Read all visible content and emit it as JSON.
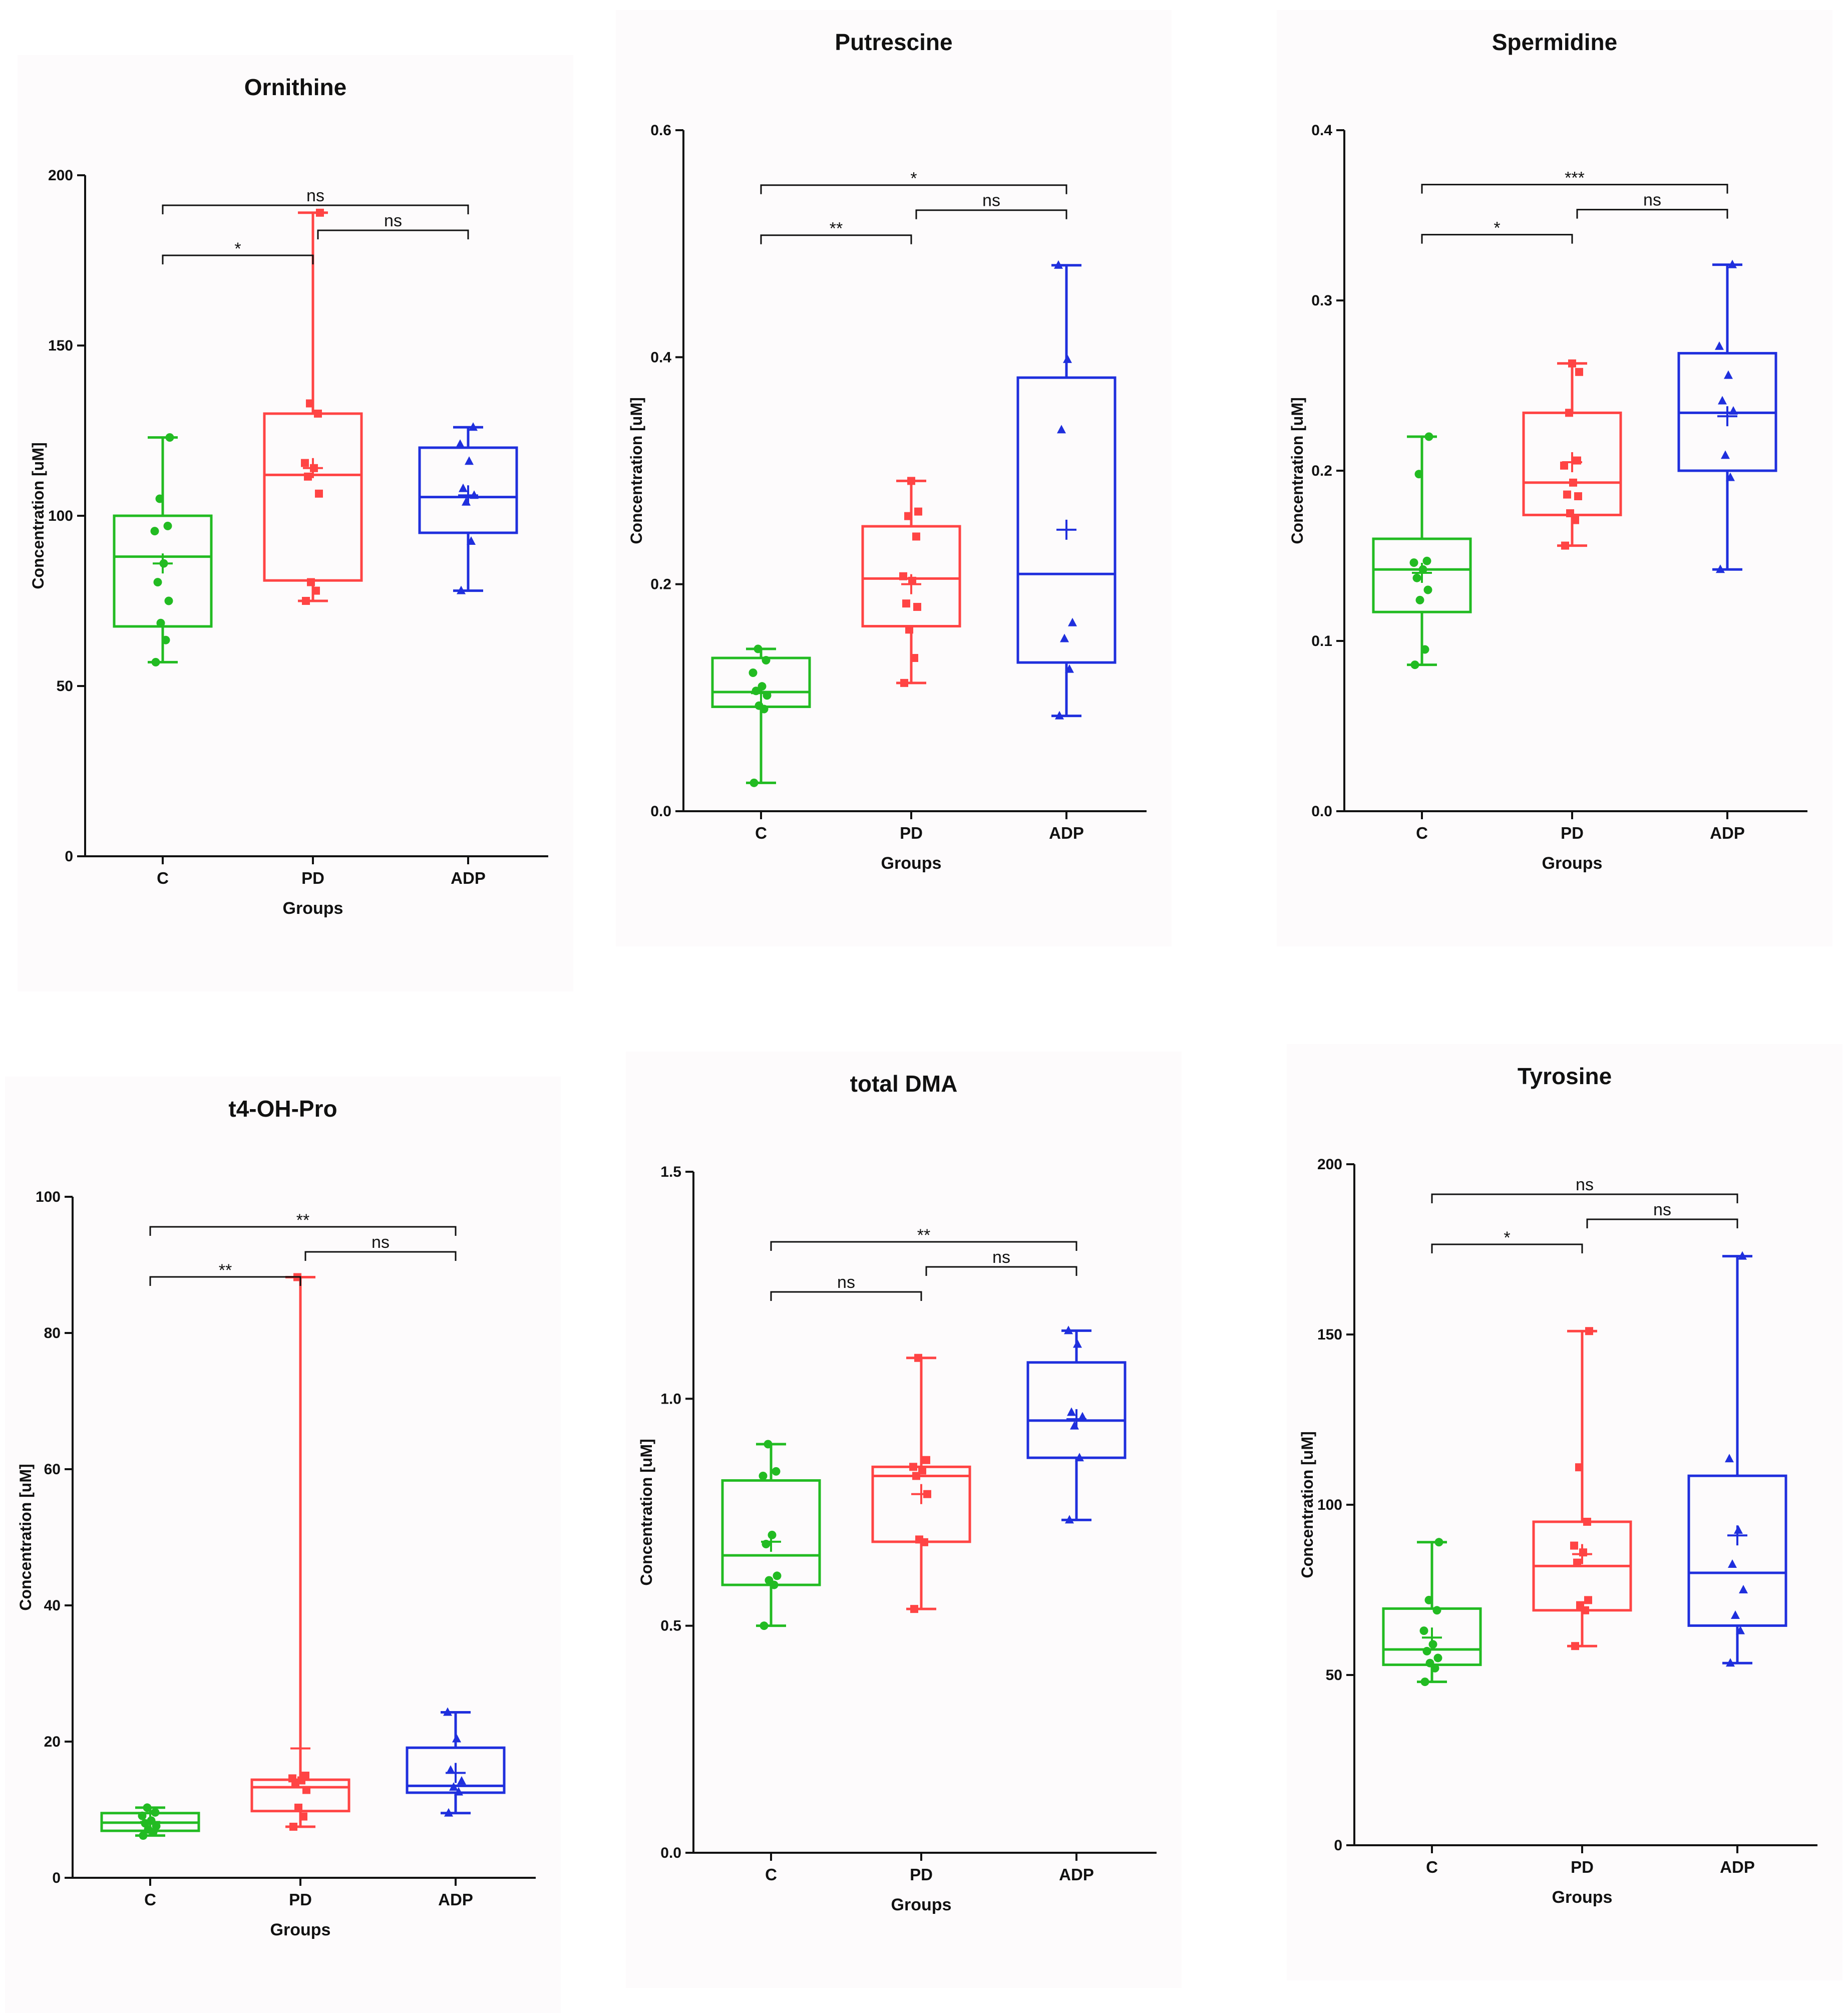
{
  "colors": {
    "C": "#22bb22",
    "PD": "#ff4444",
    "ADP": "#1f2fdd",
    "axis": "#111111"
  },
  "chart_data": [
    {
      "type": "box",
      "title": "Ornithine",
      "xlabel": "Groups",
      "ylabel": "Concentration [uM]",
      "ylim": [
        0,
        200
      ],
      "yticks": [
        0,
        50,
        100,
        150,
        200
      ],
      "ytick_labels": [
        "0",
        "50",
        "100",
        "150",
        "200"
      ],
      "categories": [
        "C",
        "PD",
        "ADP"
      ],
      "groups": [
        {
          "name": "C",
          "min": 57,
          "q1": 67.5,
          "median": 88,
          "q3": 100,
          "max": 123,
          "mean": 86,
          "marker": "circle",
          "points": [
            57,
            63.5,
            68.5,
            75,
            80.5,
            86,
            95.5,
            97,
            105,
            123
          ]
        },
        {
          "name": "PD",
          "min": 75,
          "q1": 81,
          "median": 112,
          "q3": 130,
          "max": 189,
          "mean": 114,
          "marker": "square",
          "points": [
            75,
            78,
            80.5,
            106.5,
            111.5,
            114,
            115.5,
            130,
            133,
            189
          ]
        },
        {
          "name": "ADP",
          "min": 78,
          "q1": 95,
          "median": 105.5,
          "q3": 120,
          "max": 126,
          "mean": 106,
          "marker": "triangle",
          "points": [
            78,
            92.5,
            104,
            106,
            108,
            116,
            121,
            126
          ]
        }
      ],
      "comparisons": [
        {
          "from": "C",
          "to": "PD",
          "label": "*"
        },
        {
          "from": "PD",
          "to": "ADP",
          "label": "ns"
        },
        {
          "from": "C",
          "to": "ADP",
          "label": "ns"
        }
      ]
    },
    {
      "type": "box",
      "title": "Putrescine",
      "xlabel": "Groups",
      "ylabel": "Concentration [uM]",
      "ylim": [
        0,
        0.6
      ],
      "yticks": [
        0,
        0.2,
        0.4,
        0.6
      ],
      "ytick_labels": [
        "0.0",
        "0.2",
        "0.4",
        "0.6"
      ],
      "categories": [
        "C",
        "PD",
        "ADP"
      ],
      "groups": [
        {
          "name": "C",
          "min": 0.025,
          "q1": 0.092,
          "median": 0.105,
          "q3": 0.135,
          "max": 0.143,
          "mean": 0.104,
          "marker": "circle",
          "points": [
            0.025,
            0.09,
            0.093,
            0.102,
            0.106,
            0.11,
            0.122,
            0.133,
            0.143
          ]
        },
        {
          "name": "PD",
          "min": 0.113,
          "q1": 0.163,
          "median": 0.205,
          "q3": 0.251,
          "max": 0.291,
          "mean": 0.2,
          "marker": "square",
          "points": [
            0.113,
            0.135,
            0.16,
            0.18,
            0.183,
            0.203,
            0.207,
            0.242,
            0.26,
            0.264,
            0.291
          ]
        },
        {
          "name": "ADP",
          "min": 0.084,
          "q1": 0.131,
          "median": 0.209,
          "q3": 0.382,
          "max": 0.481,
          "mean": 0.248,
          "marker": "triangle",
          "points": [
            0.084,
            0.125,
            0.152,
            0.166,
            0.336,
            0.398,
            0.481
          ]
        }
      ],
      "comparisons": [
        {
          "from": "C",
          "to": "PD",
          "label": "**"
        },
        {
          "from": "PD",
          "to": "ADP",
          "label": "ns"
        },
        {
          "from": "C",
          "to": "ADP",
          "label": "*"
        }
      ]
    },
    {
      "type": "box",
      "title": "Spermidine",
      "xlabel": "Groups",
      "ylabel": "Concentration [uM]",
      "ylim": [
        0,
        0.4
      ],
      "yticks": [
        0,
        0.1,
        0.2,
        0.3,
        0.4
      ],
      "ytick_labels": [
        "0.0",
        "0.1",
        "0.2",
        "0.3",
        "0.4"
      ],
      "categories": [
        "C",
        "PD",
        "ADP"
      ],
      "groups": [
        {
          "name": "C",
          "min": 0.086,
          "q1": 0.117,
          "median": 0.142,
          "q3": 0.16,
          "max": 0.22,
          "mean": 0.14,
          "marker": "circle",
          "points": [
            0.086,
            0.095,
            0.124,
            0.13,
            0.137,
            0.142,
            0.146,
            0.147,
            0.198,
            0.22
          ]
        },
        {
          "name": "PD",
          "min": 0.156,
          "q1": 0.174,
          "median": 0.193,
          "q3": 0.234,
          "max": 0.263,
          "mean": 0.205,
          "marker": "square",
          "points": [
            0.156,
            0.171,
            0.175,
            0.185,
            0.186,
            0.193,
            0.203,
            0.206,
            0.234,
            0.258,
            0.263
          ]
        },
        {
          "name": "ADP",
          "min": 0.142,
          "q1": 0.2,
          "median": 0.234,
          "q3": 0.269,
          "max": 0.321,
          "mean": 0.232,
          "marker": "triangle",
          "points": [
            0.142,
            0.196,
            0.209,
            0.235,
            0.241,
            0.256,
            0.273,
            0.321
          ]
        }
      ],
      "comparisons": [
        {
          "from": "C",
          "to": "PD",
          "label": "*"
        },
        {
          "from": "PD",
          "to": "ADP",
          "label": "ns"
        },
        {
          "from": "C",
          "to": "ADP",
          "label": "***"
        }
      ]
    },
    {
      "type": "box",
      "title": "t4-OH-Pro",
      "xlabel": "Groups",
      "ylabel": "Concentration [uM]",
      "ylim": [
        0,
        100
      ],
      "yticks": [
        0,
        20,
        40,
        60,
        80,
        100
      ],
      "ytick_labels": [
        "0",
        "20",
        "40",
        "60",
        "80",
        "100"
      ],
      "categories": [
        "C",
        "PD",
        "ADP"
      ],
      "groups": [
        {
          "name": "C",
          "min": 6.2,
          "q1": 6.9,
          "median": 8.1,
          "q3": 9.5,
          "max": 10.3,
          "mean": 8.2,
          "marker": "circle",
          "points": [
            6.2,
            6.7,
            7.1,
            7.6,
            8.0,
            8.4,
            9.1,
            9.6,
            10.3
          ]
        },
        {
          "name": "PD",
          "min": 7.5,
          "q1": 9.8,
          "median": 13.3,
          "q3": 14.4,
          "max": 88.2,
          "mean": 19,
          "marker": "square",
          "points": [
            7.5,
            9.0,
            10.3,
            12.9,
            13.8,
            14.3,
            14.6,
            15.0,
            88.2
          ]
        },
        {
          "name": "ADP",
          "min": 9.5,
          "q1": 12.5,
          "median": 13.5,
          "q3": 19.1,
          "max": 24.3,
          "mean": 15.4,
          "marker": "triangle",
          "points": [
            9.5,
            12.6,
            13.3,
            14.2,
            15.8,
            20.4,
            24.3
          ]
        }
      ],
      "comparisons": [
        {
          "from": "C",
          "to": "PD",
          "label": "**"
        },
        {
          "from": "PD",
          "to": "ADP",
          "label": "ns"
        },
        {
          "from": "C",
          "to": "ADP",
          "label": "**"
        }
      ]
    },
    {
      "type": "box",
      "title": "total DMA",
      "xlabel": "Groups",
      "ylabel": "Concentration [uM]",
      "ylim": [
        0,
        1.5
      ],
      "yticks": [
        0,
        0.5,
        1.0,
        1.5
      ],
      "ytick_labels": [
        "0.0",
        "0.5",
        "1.0",
        "1.5"
      ],
      "categories": [
        "C",
        "PD",
        "ADP"
      ],
      "groups": [
        {
          "name": "C",
          "min": 0.5,
          "q1": 0.59,
          "median": 0.655,
          "q3": 0.82,
          "max": 0.9,
          "mean": 0.685,
          "marker": "circle",
          "points": [
            0.5,
            0.59,
            0.6,
            0.61,
            0.68,
            0.7,
            0.83,
            0.84,
            0.9
          ]
        },
        {
          "name": "PD",
          "min": 0.537,
          "q1": 0.685,
          "median": 0.83,
          "q3": 0.85,
          "max": 1.09,
          "mean": 0.79,
          "marker": "square",
          "points": [
            0.537,
            0.684,
            0.69,
            0.79,
            0.83,
            0.842,
            0.85,
            0.865,
            1.09
          ]
        },
        {
          "name": "ADP",
          "min": 0.733,
          "q1": 0.87,
          "median": 0.952,
          "q3": 1.08,
          "max": 1.15,
          "mean": 0.955,
          "marker": "triangle",
          "points": [
            0.733,
            0.87,
            0.94,
            0.96,
            0.97,
            1.12,
            1.15
          ]
        }
      ],
      "comparisons": [
        {
          "from": "C",
          "to": "PD",
          "label": "ns"
        },
        {
          "from": "PD",
          "to": "ADP",
          "label": "ns"
        },
        {
          "from": "C",
          "to": "ADP",
          "label": "**"
        }
      ]
    },
    {
      "type": "box",
      "title": "Tyrosine",
      "xlabel": "Groups",
      "ylabel": "Concentration [uM]",
      "ylim": [
        0,
        200
      ],
      "yticks": [
        0,
        50,
        100,
        150,
        200
      ],
      "ytick_labels": [
        "0",
        "50",
        "100",
        "150",
        "200"
      ],
      "categories": [
        "C",
        "PD",
        "ADP"
      ],
      "groups": [
        {
          "name": "C",
          "min": 48,
          "q1": 53,
          "median": 57.5,
          "q3": 69.5,
          "max": 89,
          "mean": 61,
          "marker": "circle",
          "points": [
            48,
            52,
            53.5,
            55,
            57,
            59,
            63,
            69,
            72,
            89
          ]
        },
        {
          "name": "PD",
          "min": 58.5,
          "q1": 69,
          "median": 82,
          "q3": 95,
          "max": 151,
          "mean": 85.5,
          "marker": "square",
          "points": [
            58.5,
            69,
            70.5,
            72,
            83,
            86,
            88,
            95,
            111,
            151
          ]
        },
        {
          "name": "ADP",
          "min": 53.5,
          "q1": 64.5,
          "median": 80,
          "q3": 108.5,
          "max": 173,
          "mean": 91,
          "marker": "triangle",
          "points": [
            53.5,
            63,
            67.5,
            75,
            82.5,
            92.5,
            113.5,
            173
          ]
        }
      ],
      "comparisons": [
        {
          "from": "C",
          "to": "PD",
          "label": "*"
        },
        {
          "from": "PD",
          "to": "ADP",
          "label": "ns"
        },
        {
          "from": "C",
          "to": "ADP",
          "label": "ns"
        }
      ]
    }
  ]
}
